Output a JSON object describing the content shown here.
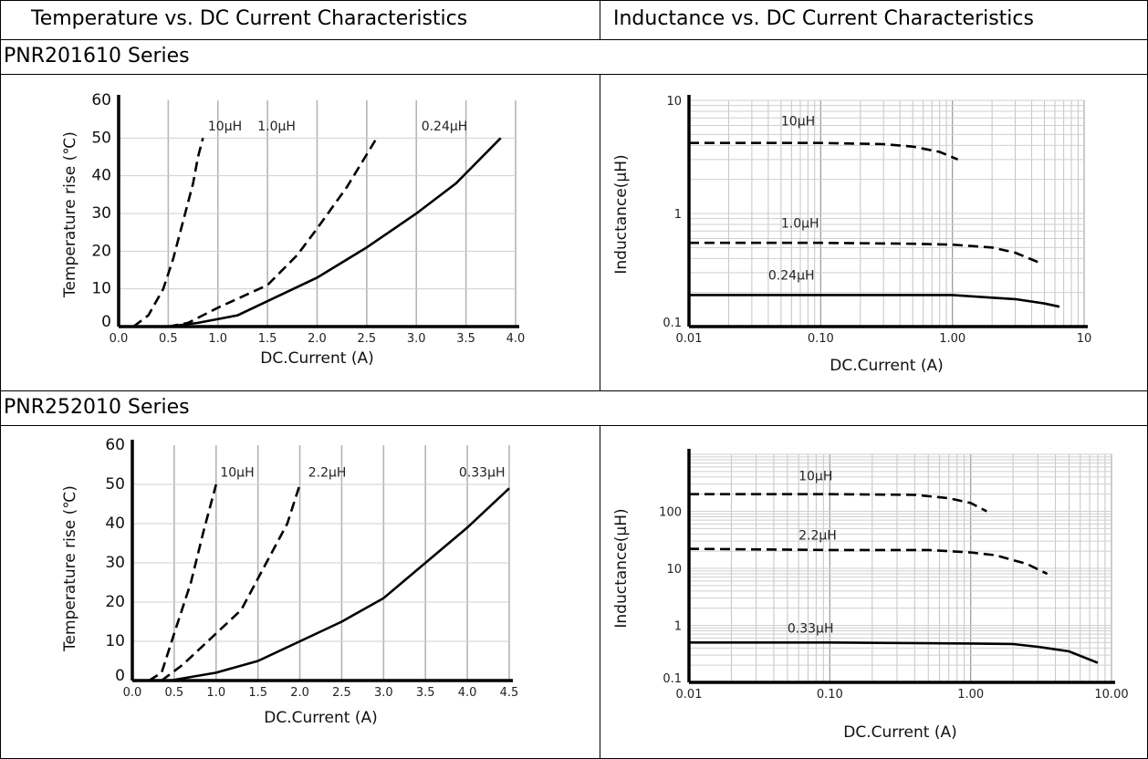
{
  "header": {
    "left": "Temperature vs. DC Current Characteristics",
    "right": "Inductance vs. DC Current Characteristics"
  },
  "sections": [
    {
      "title": "PNR201610 Series"
    },
    {
      "title": "PNR252010 Series"
    }
  ],
  "chart_data": [
    {
      "type": "line",
      "xlabel": "DC.Current (A)",
      "ylabel": "Temperature rise (℃)",
      "x_ticks": [
        "0.0",
        "0.5",
        "1.0",
        "1.5",
        "2.0",
        "2.5",
        "3.0",
        "3.5",
        "4.0"
      ],
      "y_ticks": [
        "0",
        "10",
        "20",
        "30",
        "40",
        "50",
        "60"
      ],
      "xlim": [
        0,
        4.0
      ],
      "ylim": [
        0,
        60
      ],
      "grid": "vertical",
      "series": [
        {
          "name": "10μH",
          "style": "dash",
          "points": [
            [
              0.15,
              0
            ],
            [
              0.3,
              3
            ],
            [
              0.45,
              10
            ],
            [
              0.55,
              18
            ],
            [
              0.65,
              28
            ],
            [
              0.75,
              38
            ],
            [
              0.8,
              45
            ],
            [
              0.85,
              50
            ]
          ]
        },
        {
          "name": "1.0μH",
          "style": "dash",
          "points": [
            [
              0.5,
              0
            ],
            [
              0.7,
              1
            ],
            [
              1.0,
              5
            ],
            [
              1.5,
              11
            ],
            [
              1.8,
              19
            ],
            [
              2.0,
              26
            ],
            [
              2.3,
              37
            ],
            [
              2.6,
              50
            ]
          ]
        },
        {
          "name": "0.24μH",
          "style": "solid",
          "points": [
            [
              0.5,
              0
            ],
            [
              0.8,
              1
            ],
            [
              1.2,
              3
            ],
            [
              1.6,
              8
            ],
            [
              2.0,
              13
            ],
            [
              2.5,
              21
            ],
            [
              3.0,
              30
            ],
            [
              3.4,
              38
            ],
            [
              3.85,
              50
            ]
          ]
        }
      ]
    },
    {
      "type": "line",
      "xlabel": "DC.Current (A)",
      "ylabel": "Inductance(μH)",
      "x_ticks": [
        "0.01",
        "0.10",
        "1.00",
        "10"
      ],
      "y_ticks": [
        "0.1",
        "1",
        "10"
      ],
      "xscale": "log",
      "yscale": "log",
      "xlim": [
        0.01,
        10
      ],
      "ylim": [
        0.1,
        10
      ],
      "grid": "log",
      "series": [
        {
          "name": "10μH",
          "style": "dash",
          "points": [
            [
              0.01,
              4.2
            ],
            [
              0.1,
              4.2
            ],
            [
              0.3,
              4.1
            ],
            [
              0.5,
              3.9
            ],
            [
              0.8,
              3.5
            ],
            [
              1.1,
              3.0
            ]
          ]
        },
        {
          "name": "1.0μH",
          "style": "dash",
          "points": [
            [
              0.01,
              0.55
            ],
            [
              0.1,
              0.55
            ],
            [
              0.5,
              0.54
            ],
            [
              1.0,
              0.53
            ],
            [
              2.0,
              0.5
            ],
            [
              3.0,
              0.45
            ],
            [
              4.5,
              0.37
            ]
          ]
        },
        {
          "name": "0.24μH",
          "style": "solid",
          "points": [
            [
              0.01,
              0.19
            ],
            [
              0.1,
              0.19
            ],
            [
              1.0,
              0.19
            ],
            [
              2.0,
              0.18
            ],
            [
              3.0,
              0.175
            ],
            [
              5.0,
              0.16
            ],
            [
              6.5,
              0.15
            ]
          ]
        }
      ]
    },
    {
      "type": "line",
      "xlabel": "DC.Current (A)",
      "ylabel": "Temperature rise (℃)",
      "x_ticks": [
        "0.0",
        "0.5",
        "1.0",
        "1.5",
        "2.0",
        "2.5",
        "3.0",
        "3.5",
        "4.0",
        "4.5"
      ],
      "y_ticks": [
        "0",
        "10",
        "20",
        "30",
        "40",
        "50",
        "60"
      ],
      "xlim": [
        0,
        4.5
      ],
      "ylim": [
        0,
        60
      ],
      "grid": "vertical",
      "series": [
        {
          "name": "10μH",
          "style": "dash",
          "points": [
            [
              0.2,
              0
            ],
            [
              0.35,
              2
            ],
            [
              0.5,
              12
            ],
            [
              0.7,
              25
            ],
            [
              0.85,
              38
            ],
            [
              1.0,
              50
            ]
          ]
        },
        {
          "name": "2.2μH",
          "style": "dash",
          "points": [
            [
              0.35,
              0
            ],
            [
              0.6,
              4
            ],
            [
              1.0,
              12
            ],
            [
              1.3,
              18
            ],
            [
              1.6,
              30
            ],
            [
              1.85,
              40
            ],
            [
              2.0,
              50
            ]
          ]
        },
        {
          "name": "0.33μH",
          "style": "solid",
          "points": [
            [
              0.45,
              0
            ],
            [
              1.0,
              2
            ],
            [
              1.5,
              5
            ],
            [
              2.0,
              10
            ],
            [
              2.5,
              15
            ],
            [
              3.0,
              21
            ],
            [
              3.5,
              30
            ],
            [
              4.0,
              39
            ],
            [
              4.5,
              49
            ]
          ]
        }
      ]
    },
    {
      "type": "line",
      "xlabel": "DC.Current (A)",
      "ylabel": "Inductance(μH)",
      "x_ticks": [
        "0.01",
        "0.10",
        "1.00",
        "10.00"
      ],
      "y_ticks": [
        "0.1",
        "1",
        "10",
        "100"
      ],
      "xscale": "log",
      "yscale": "log",
      "xlim": [
        0.01,
        10
      ],
      "ylim": [
        0.1,
        1000
      ],
      "grid": "log",
      "series": [
        {
          "name": "10μH",
          "style": "dash",
          "points": [
            [
              0.01,
              200
            ],
            [
              0.1,
              200
            ],
            [
              0.4,
              195
            ],
            [
              0.7,
              170
            ],
            [
              1.0,
              140
            ],
            [
              1.3,
              100
            ]
          ]
        },
        {
          "name": "2.2μH",
          "style": "dash",
          "points": [
            [
              0.01,
              22
            ],
            [
              0.1,
              21
            ],
            [
              0.5,
              21
            ],
            [
              1.0,
              19
            ],
            [
              1.5,
              17
            ],
            [
              2.5,
              12
            ],
            [
              3.5,
              8
            ]
          ]
        },
        {
          "name": "0.33μH",
          "style": "solid",
          "points": [
            [
              0.01,
              0.5
            ],
            [
              0.1,
              0.5
            ],
            [
              1.0,
              0.48
            ],
            [
              2.0,
              0.47
            ],
            [
              3.0,
              0.42
            ],
            [
              5.0,
              0.35
            ],
            [
              8.0,
              0.22
            ]
          ]
        }
      ]
    }
  ]
}
